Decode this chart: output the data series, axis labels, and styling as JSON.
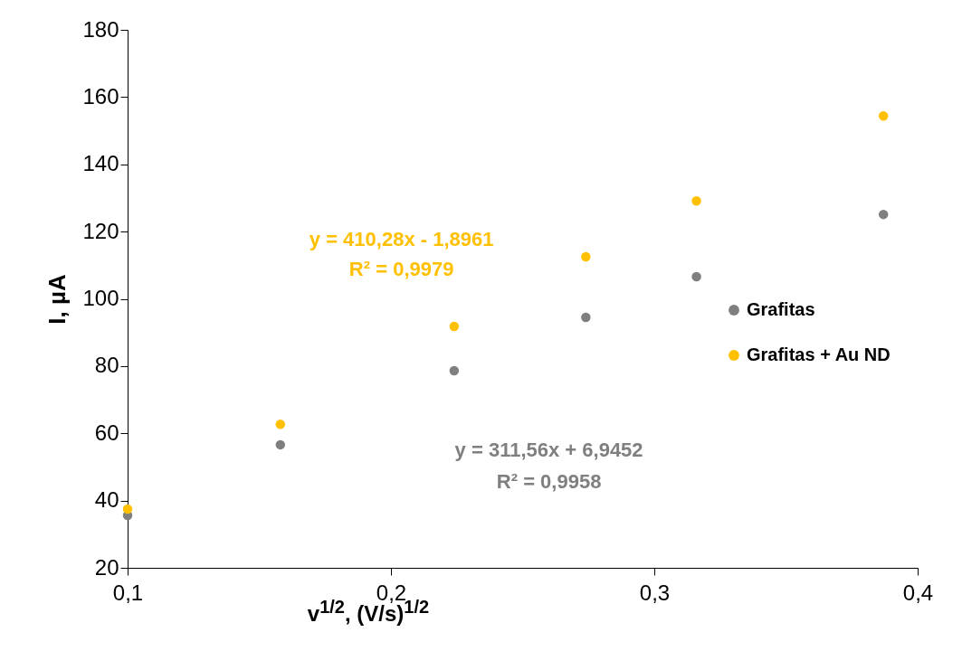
{
  "chart_data": {
    "type": "scatter",
    "xlabel": "v$^{1/2}$, (V/s)$^{1/2}$",
    "ylabel": "I, µA",
    "x": [
      0.1,
      0.158,
      0.224,
      0.274,
      0.316,
      0.387
    ],
    "series": [
      {
        "name": "Grafitas",
        "color": "#7f7f7f",
        "values": [
          35.6,
          56.6,
          78.6,
          94.5,
          106.6,
          125.1
        ]
      },
      {
        "name": "Grafitas + Au ND",
        "color": "#ffc000",
        "values": [
          37.5,
          62.7,
          91.8,
          112.5,
          129.1,
          154.4
        ]
      }
    ],
    "xlim": [
      0.1,
      0.4
    ],
    "xticks": [
      {
        "value": 0.1,
        "label": "0,1"
      },
      {
        "value": 0.2,
        "label": "0,2"
      },
      {
        "value": 0.3,
        "label": "0,3"
      },
      {
        "value": 0.4,
        "label": "0,4"
      }
    ],
    "ylim": [
      20,
      180
    ],
    "yticks": [
      20,
      40,
      60,
      80,
      100,
      120,
      140,
      160,
      180
    ],
    "grid": false,
    "legend": "right",
    "marker": "circle",
    "annotations": [
      "y = 311,56x + 6,9452",
      "R² = 0,9958",
      "y = 410,28x - 1,8961",
      "R² = 0,9979"
    ]
  }
}
